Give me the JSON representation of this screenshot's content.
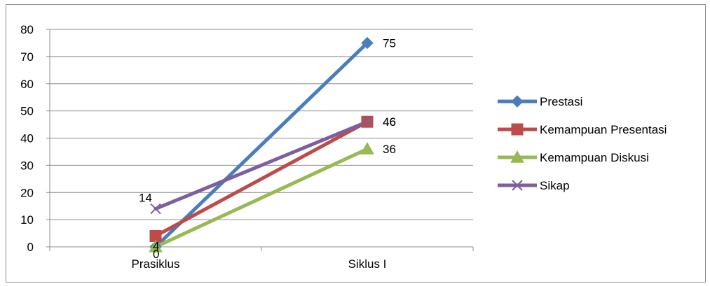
{
  "chart_data": {
    "type": "line",
    "title": "",
    "xlabel": "",
    "ylabel": "",
    "categories": [
      "Prasiklus",
      "Siklus I"
    ],
    "ylim": [
      0,
      80
    ],
    "yticks": [
      0,
      10,
      20,
      30,
      40,
      50,
      60,
      70,
      80
    ],
    "grid": true,
    "legend_position": "right",
    "series": [
      {
        "name": "Prestasi",
        "values": [
          0,
          75
        ],
        "color": "#4a7ebb",
        "marker": "diamond",
        "labels": [
          "",
          "75"
        ]
      },
      {
        "name": "Kemampuan Presentasi",
        "values": [
          4,
          46
        ],
        "color": "#be4b48",
        "marker": "square",
        "labels": [
          "4",
          "46"
        ]
      },
      {
        "name": "Kemampuan Diskusi",
        "values": [
          0,
          36
        ],
        "color": "#98b954",
        "marker": "triangle",
        "labels": [
          "0",
          "36"
        ]
      },
      {
        "name": "Sikap",
        "values": [
          14,
          46
        ],
        "color": "#7d5fa0",
        "marker": "x",
        "labels": [
          "14",
          "46"
        ]
      }
    ]
  }
}
